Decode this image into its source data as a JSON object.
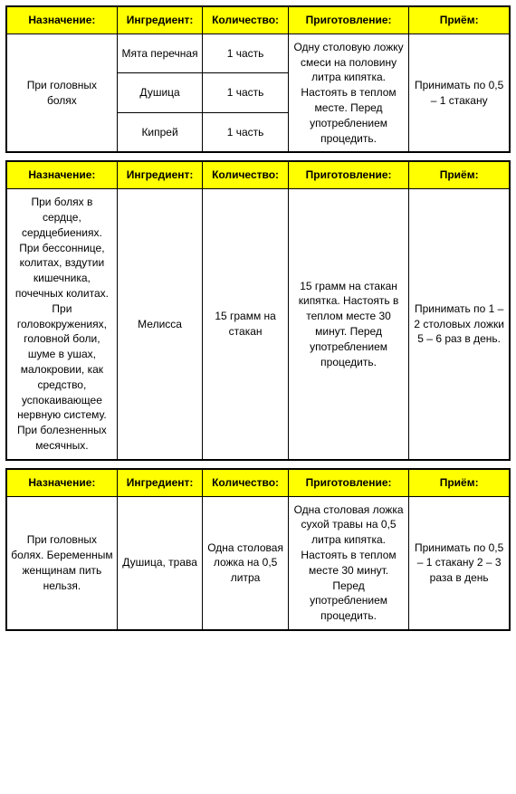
{
  "headers": {
    "c1": "Назначение:",
    "c2": "Ингредиент:",
    "c3": "Количество:",
    "c4": "Приготовление:",
    "c5": "Приём:"
  },
  "table1": {
    "purpose": "При головных болях",
    "rows": [
      {
        "ingredient": "Мята перечная",
        "amount": "1 часть"
      },
      {
        "ingredient": "Душица",
        "amount": "1 часть"
      },
      {
        "ingredient": "Кипрей",
        "amount": "1 часть"
      }
    ],
    "preparation": "Одну столовую ложку смеси на половину литра кипятка. Настоять в теплом месте. Перед употреблением процедить.",
    "intake": "Принимать по 0,5 – 1 стакану"
  },
  "table2": {
    "purpose": "При болях в сердце, сердцебиениях. При бессоннице, колитах, вздутии кишечника, почечных колитах. При головокружениях, головной боли, шуме в ушах, малокровии, как средство, успокаивающее нервную систему. При болезненных месячных.",
    "ingredient": "Мелисса",
    "amount": "15 грамм на стакан",
    "preparation": "15 грамм на стакан кипятка. Настоять в теплом месте 30 минут. Перед употреблением процедить.",
    "intake": "Принимать по 1 – 2 столовых ложки 5 – 6 раз в день."
  },
  "table3": {
    "purpose": "При головных болях. Беременным женщинам пить нельзя.",
    "ingredient": "Душица, трава",
    "amount": "Одна столовая ложка на 0,5 литра",
    "preparation": "Одна столовая ложка сухой травы на 0,5 литра кипятка. Настоять в теплом месте 30 минут. Перед употреблением процедить.",
    "intake": "Принимать по 0,5 – 1 стакану 2 – 3 раза в день"
  },
  "styling": {
    "header_bg": "#ffff00",
    "border_color": "#000000",
    "page_bg": "#ffffff",
    "font_family": "Arial",
    "cell_fontsize": 12,
    "header_fontweight": "bold",
    "section_gap": 8,
    "text_align": "center",
    "col_widths_pct": [
      22,
      17,
      17,
      24,
      20
    ]
  }
}
